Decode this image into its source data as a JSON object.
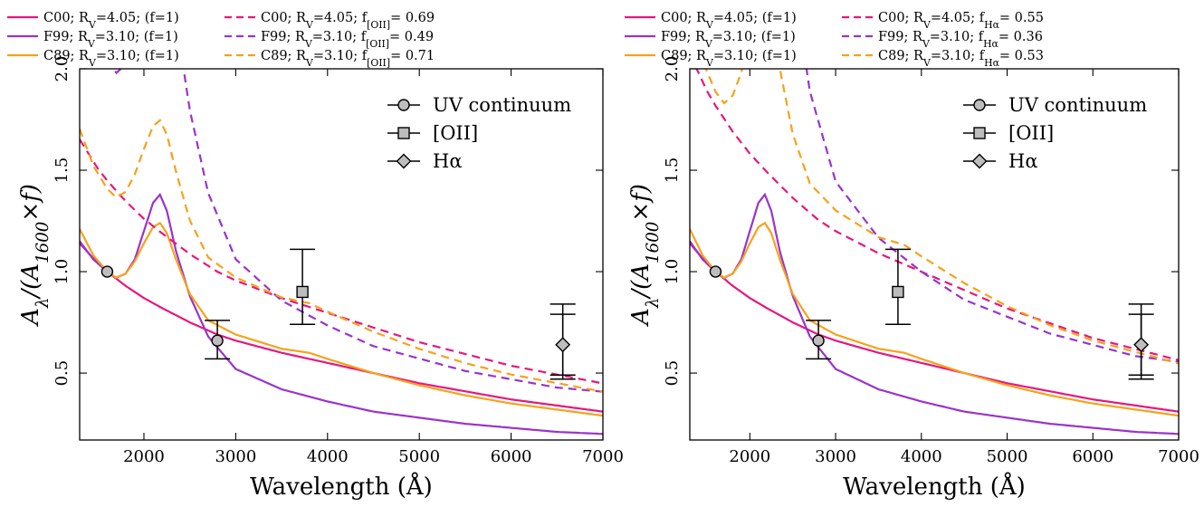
{
  "chart_data": [
    {
      "type": "line",
      "xlabel": "Wavelength (Å)",
      "ylabel": "A_λ/(A_1600×f)",
      "xlim": [
        1300,
        7000
      ],
      "ylim": [
        0.17,
        2.0
      ],
      "xticks": [
        2000,
        3000,
        4000,
        5000,
        6000,
        7000
      ],
      "yticks": [
        0.5,
        1.0,
        1.5,
        2.0
      ],
      "grid": false,
      "colors": {
        "C00": "#e6177e",
        "F99": "#9933cc",
        "C89": "#f5a21b"
      },
      "outer_legend": [
        {
          "text": "C00; R_V=4.05; (f=1)",
          "color": "#e6177e",
          "dashed": false
        },
        {
          "text": "F99; R_V=3.10; (f=1)",
          "color": "#9933cc",
          "dashed": false
        },
        {
          "text": "C89; R_V=3.10; (f=1)",
          "color": "#f5a21b",
          "dashed": false
        },
        {
          "text": "C00; R_V=4.05; f_[OII]= 0.69",
          "color": "#e6177e",
          "dashed": true
        },
        {
          "text": "F99; R_V=3.10; f_[OII]= 0.49",
          "color": "#9933cc",
          "dashed": true
        },
        {
          "text": "C89; R_V=3.10; f_[OII]= 0.71",
          "color": "#f5a21b",
          "dashed": true
        }
      ],
      "inner_legend": [
        {
          "text": "UV continuum",
          "marker": "circle"
        },
        {
          "text": "[OII]",
          "marker": "square"
        },
        {
          "text": "Hα",
          "marker": "diamond"
        }
      ],
      "series": [
        {
          "name": "C00; R_V=4.05; (f=1)",
          "law": "C00",
          "scale": 1.0,
          "dashed": false,
          "x": [
            1300,
            1400,
            1500,
            1600,
            1800,
            2000,
            2200,
            2500,
            2800,
            3000,
            3500,
            4000,
            4500,
            5000,
            5500,
            6000,
            6500,
            7000
          ],
          "y": [
            1.14,
            1.09,
            1.04,
            1.0,
            0.93,
            0.87,
            0.82,
            0.75,
            0.69,
            0.66,
            0.6,
            0.55,
            0.5,
            0.45,
            0.41,
            0.37,
            0.34,
            0.31
          ]
        },
        {
          "name": "F99; R_V=3.10; (f=1)",
          "law": "F99",
          "scale": 1.0,
          "dashed": false,
          "x": [
            1300,
            1450,
            1600,
            1700,
            1800,
            1900,
            2000,
            2100,
            2175,
            2250,
            2350,
            2500,
            2700,
            3000,
            3500,
            4000,
            4500,
            5000,
            5500,
            6000,
            6500,
            7000
          ],
          "y": [
            1.15,
            1.06,
            1.0,
            0.97,
            0.99,
            1.06,
            1.2,
            1.34,
            1.38,
            1.3,
            1.1,
            0.88,
            0.68,
            0.52,
            0.42,
            0.36,
            0.31,
            0.28,
            0.25,
            0.23,
            0.21,
            0.2
          ],
          "x2": [
            1300,
            1450,
            1600,
            1700,
            1800,
            1900,
            2000,
            2100,
            2175,
            2250,
            2350,
            2500,
            2700,
            3000,
            3500,
            4000,
            4500,
            5000,
            5500,
            6000,
            6500,
            7000
          ]
        },
        {
          "name": "C89; R_V=3.10; (f=1)",
          "law": "C89",
          "scale": 1.0,
          "dashed": false,
          "x": [
            1300,
            1450,
            1600,
            1700,
            1800,
            1900,
            2000,
            2100,
            2175,
            2250,
            2350,
            2500,
            2700,
            3000,
            3500,
            3800,
            4000,
            4500,
            5000,
            5500,
            6000,
            6500,
            7000
          ],
          "y": [
            1.21,
            1.08,
            1.0,
            0.97,
            0.99,
            1.05,
            1.14,
            1.22,
            1.24,
            1.19,
            1.06,
            0.89,
            0.76,
            0.69,
            0.62,
            0.6,
            0.57,
            0.5,
            0.44,
            0.39,
            0.35,
            0.32,
            0.29
          ]
        },
        {
          "name": "C00; R_V=4.05; f_[OII]= 0.69",
          "law": "C00",
          "scale": 1.449,
          "dashed": true
        },
        {
          "name": "F99; R_V=3.10; f_[OII]= 0.49",
          "law": "F99",
          "scale": 2.041,
          "dashed": true
        },
        {
          "name": "C89; R_V=3.10; f_[OII]= 0.71",
          "law": "C89",
          "scale": 1.408,
          "dashed": true
        }
      ],
      "points": [
        {
          "label": "UV continuum",
          "marker": "circle",
          "x": 1600,
          "y": 1.0
        },
        {
          "label": "UV continuum",
          "marker": "circle",
          "x": 2800,
          "y": 0.66,
          "err_lo": 0.57,
          "err_hi": 0.76
        },
        {
          "label": "[OII]",
          "marker": "square",
          "x": 3727,
          "y": 0.9,
          "err_lo": 0.74,
          "err_hi": 1.11
        },
        {
          "label": "Hα",
          "marker": "diamond",
          "x": 6563,
          "y": 0.64,
          "err_lo": 0.49,
          "err_hi": 0.79,
          "err_lo2": 0.47,
          "err_hi2": 0.84
        }
      ]
    },
    {
      "type": "line",
      "xlabel": "Wavelength (Å)",
      "ylabel": "A_λ/(A_1600×f)",
      "xlim": [
        1300,
        7000
      ],
      "ylim": [
        0.17,
        2.0
      ],
      "xticks": [
        2000,
        3000,
        4000,
        5000,
        6000,
        7000
      ],
      "yticks": [
        0.5,
        1.0,
        1.5,
        2.0
      ],
      "grid": false,
      "colors": {
        "C00": "#e6177e",
        "F99": "#9933cc",
        "C89": "#f5a21b"
      },
      "outer_legend": [
        {
          "text": "C00; R_V=4.05; (f=1)",
          "color": "#e6177e",
          "dashed": false
        },
        {
          "text": "F99; R_V=3.10; (f=1)",
          "color": "#9933cc",
          "dashed": false
        },
        {
          "text": "C89; R_V=3.10; (f=1)",
          "color": "#f5a21b",
          "dashed": false
        },
        {
          "text": "C00; R_V=4.05; f_Hα= 0.55",
          "color": "#e6177e",
          "dashed": true
        },
        {
          "text": "F99; R_V=3.10; f_Hα= 0.36",
          "color": "#9933cc",
          "dashed": true
        },
        {
          "text": "C89; R_V=3.10; f_Hα= 0.53",
          "color": "#f5a21b",
          "dashed": true
        }
      ],
      "inner_legend": [
        {
          "text": "UV continuum",
          "marker": "circle"
        },
        {
          "text": "[OII]",
          "marker": "square"
        },
        {
          "text": "Hα",
          "marker": "diamond"
        }
      ],
      "series": [
        {
          "name": "C00; R_V=4.05; (f=1)",
          "law": "C00",
          "scale": 1.0,
          "dashed": false
        },
        {
          "name": "F99; R_V=3.10; (f=1)",
          "law": "F99",
          "scale": 1.0,
          "dashed": false
        },
        {
          "name": "C89; R_V=3.10; (f=1)",
          "law": "C89",
          "scale": 1.0,
          "dashed": false
        },
        {
          "name": "C00; R_V=4.05; f_Hα= 0.55",
          "law": "C00",
          "scale": 1.818,
          "dashed": true
        },
        {
          "name": "F99; R_V=3.10; f_Hα= 0.36",
          "law": "F99",
          "scale": 2.778,
          "dashed": true
        },
        {
          "name": "C89; R_V=3.10; f_Hα= 0.53",
          "law": "C89",
          "scale": 1.887,
          "dashed": true
        }
      ],
      "points": [
        {
          "label": "UV continuum",
          "marker": "circle",
          "x": 1600,
          "y": 1.0
        },
        {
          "label": "UV continuum",
          "marker": "circle",
          "x": 2800,
          "y": 0.66,
          "err_lo": 0.57,
          "err_hi": 0.76
        },
        {
          "label": "[OII]",
          "marker": "square",
          "x": 3727,
          "y": 0.9,
          "err_lo": 0.74,
          "err_hi": 1.11
        },
        {
          "label": "Hα",
          "marker": "diamond",
          "x": 6563,
          "y": 0.64,
          "err_lo": 0.49,
          "err_hi": 0.79,
          "err_lo2": 0.47,
          "err_hi2": 0.84
        }
      ]
    }
  ]
}
